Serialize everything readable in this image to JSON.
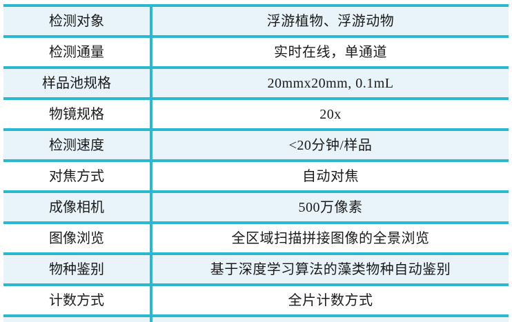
{
  "page": {
    "background_color": "#ffffff"
  },
  "table": {
    "border_color": "#29b8cd",
    "row_alt_color": "#e8f4fa",
    "row_base_color": "#ffffff",
    "text_color": "#1a1a1a",
    "rows": [
      {
        "label": "检测对象",
        "value": "浮游植物、浮游动物"
      },
      {
        "label": "检测通量",
        "value": "实时在线，单通道"
      },
      {
        "label": "样品池规格",
        "value": "20mmx20mm, 0.1mL"
      },
      {
        "label": "物镜规格",
        "value": "20x"
      },
      {
        "label": "检测速度",
        "value": "<20分钟/样品"
      },
      {
        "label": "对焦方式",
        "value": "自动对焦"
      },
      {
        "label": "成像相机",
        "value": "500万像素"
      },
      {
        "label": "图像浏览",
        "value": "全区域扫描拼接图像的全景浏览"
      },
      {
        "label": "物种鉴别",
        "value": "基于深度学习算法的藻类物种自动鉴别"
      },
      {
        "label": "计数方式",
        "value": "全片计数方式"
      },
      {
        "label": "",
        "value": ""
      }
    ]
  }
}
